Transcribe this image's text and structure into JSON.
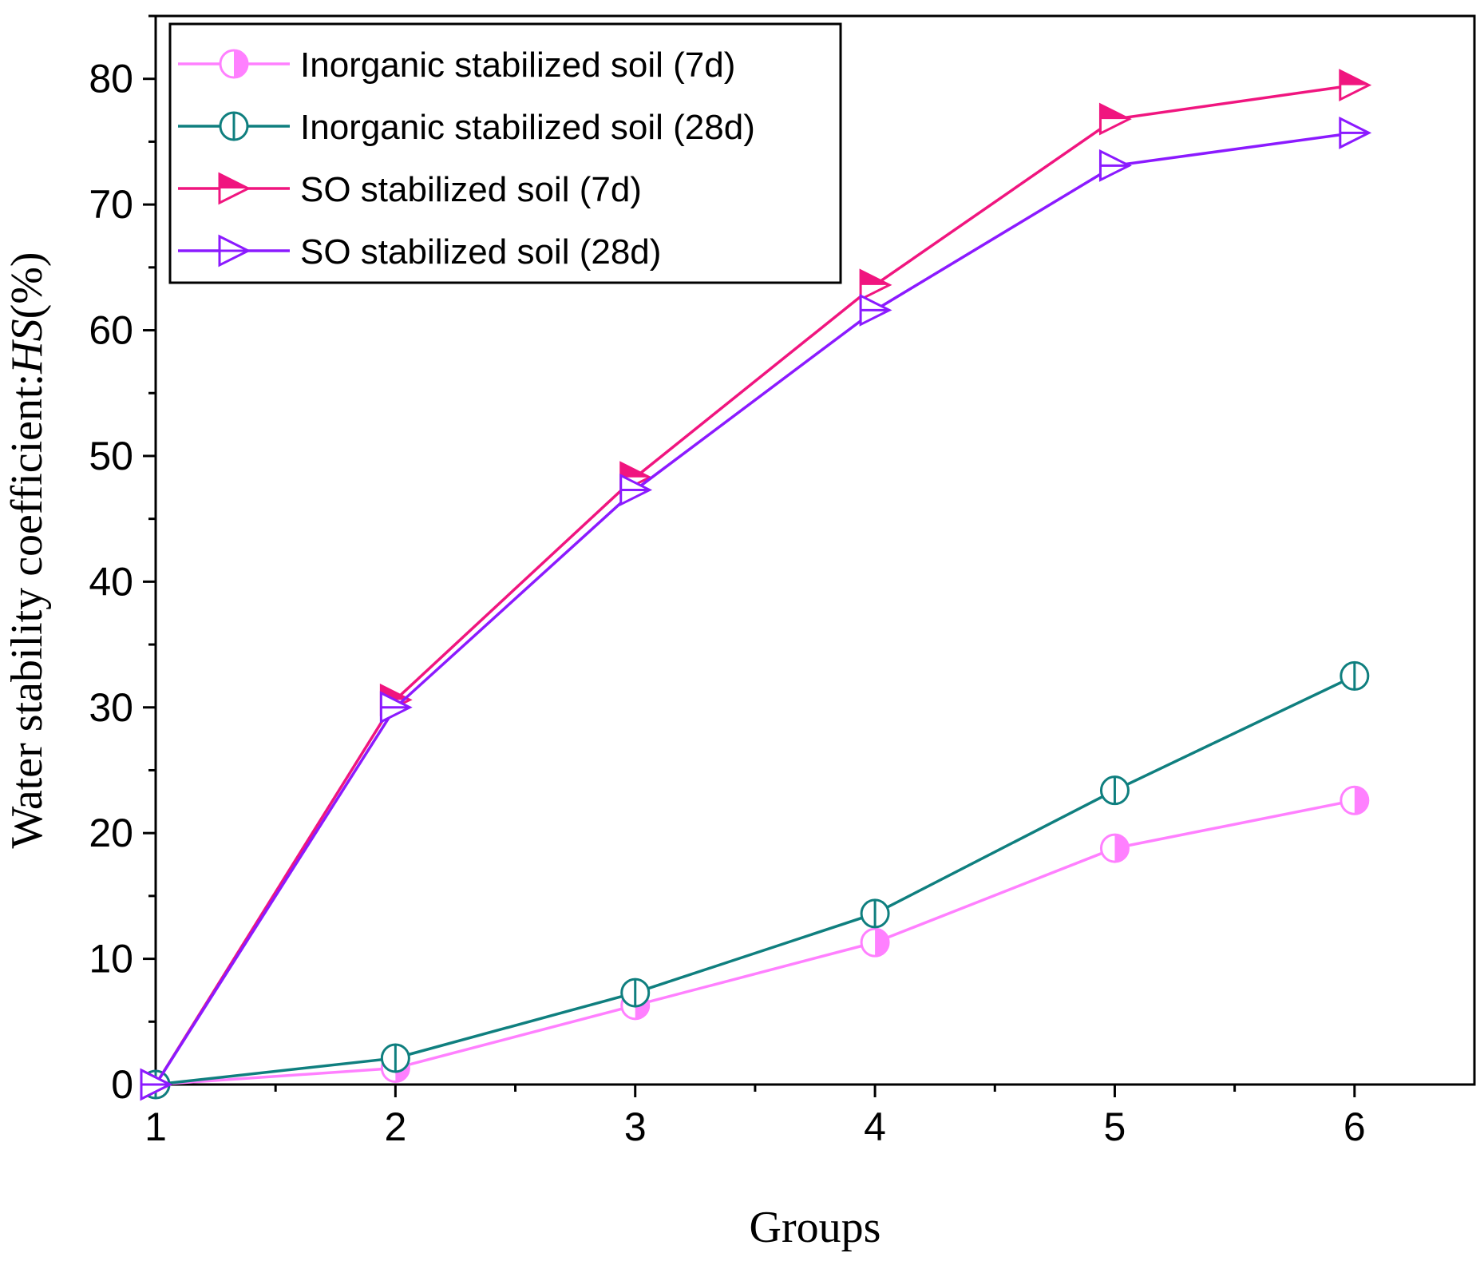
{
  "chart_data": {
    "type": "line",
    "title": "",
    "xlabel": "Groups",
    "ylabel": {
      "prefix": "Water stability coefficient:",
      "italic": "HS",
      "suffix": "(%)"
    },
    "x": [
      1,
      2,
      3,
      4,
      5,
      6
    ],
    "xlim": [
      1,
      6.5
    ],
    "ylim": [
      0,
      85
    ],
    "xticks": [
      "1",
      "2",
      "3",
      "4",
      "5",
      "6"
    ],
    "yticks": [
      "0",
      "10",
      "20",
      "30",
      "40",
      "50",
      "60",
      "70",
      "80"
    ],
    "grid": false,
    "legend_position": "top-left",
    "series": [
      {
        "name": "Inorganic stabilized soil (7d)",
        "values": [
          0,
          1.3,
          6.3,
          11.3,
          18.8,
          22.6
        ],
        "color": "#ff80ff",
        "marker": "circle-half"
      },
      {
        "name": "Inorganic stabilized soil (28d)",
        "values": [
          0,
          2.1,
          7.3,
          13.6,
          23.4,
          32.5
        ],
        "color": "#0f7f7f",
        "marker": "circle-bar"
      },
      {
        "name": "SO stabilized soil (7d)",
        "values": [
          0,
          30.6,
          48.3,
          63.6,
          76.8,
          79.5
        ],
        "color": "#f0157f",
        "marker": "triangle-right-half"
      },
      {
        "name": "SO stabilized soil (28d)",
        "values": [
          0,
          30.0,
          47.3,
          61.6,
          73.1,
          75.7
        ],
        "color": "#8b1aff",
        "marker": "triangle-right-cross"
      }
    ]
  }
}
